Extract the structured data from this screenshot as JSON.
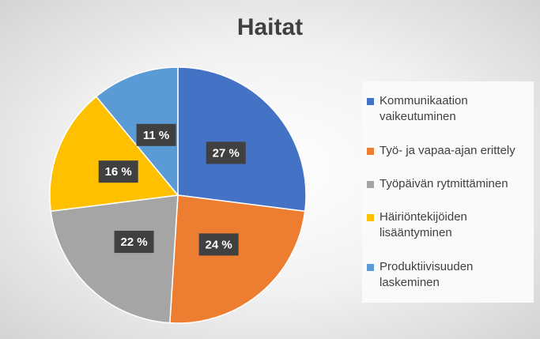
{
  "chart_data": {
    "type": "pie",
    "title": "Haitat",
    "categories": [
      "Kommunikaation vaikeutuminen",
      "Työ- ja vapaa-ajan erittely",
      "Työpäivän rytmittäminen",
      "Häiriöntekijöiden lisääntyminen",
      "Produktiivisuuden laskeminen"
    ],
    "values": [
      27,
      24,
      22,
      16,
      11
    ],
    "value_labels": [
      "27 %",
      "24 %",
      "22 %",
      "16 %",
      "11 %"
    ],
    "colors": [
      "#4472c4",
      "#ed7d31",
      "#a5a5a5",
      "#ffc000",
      "#5b9bd5"
    ]
  }
}
